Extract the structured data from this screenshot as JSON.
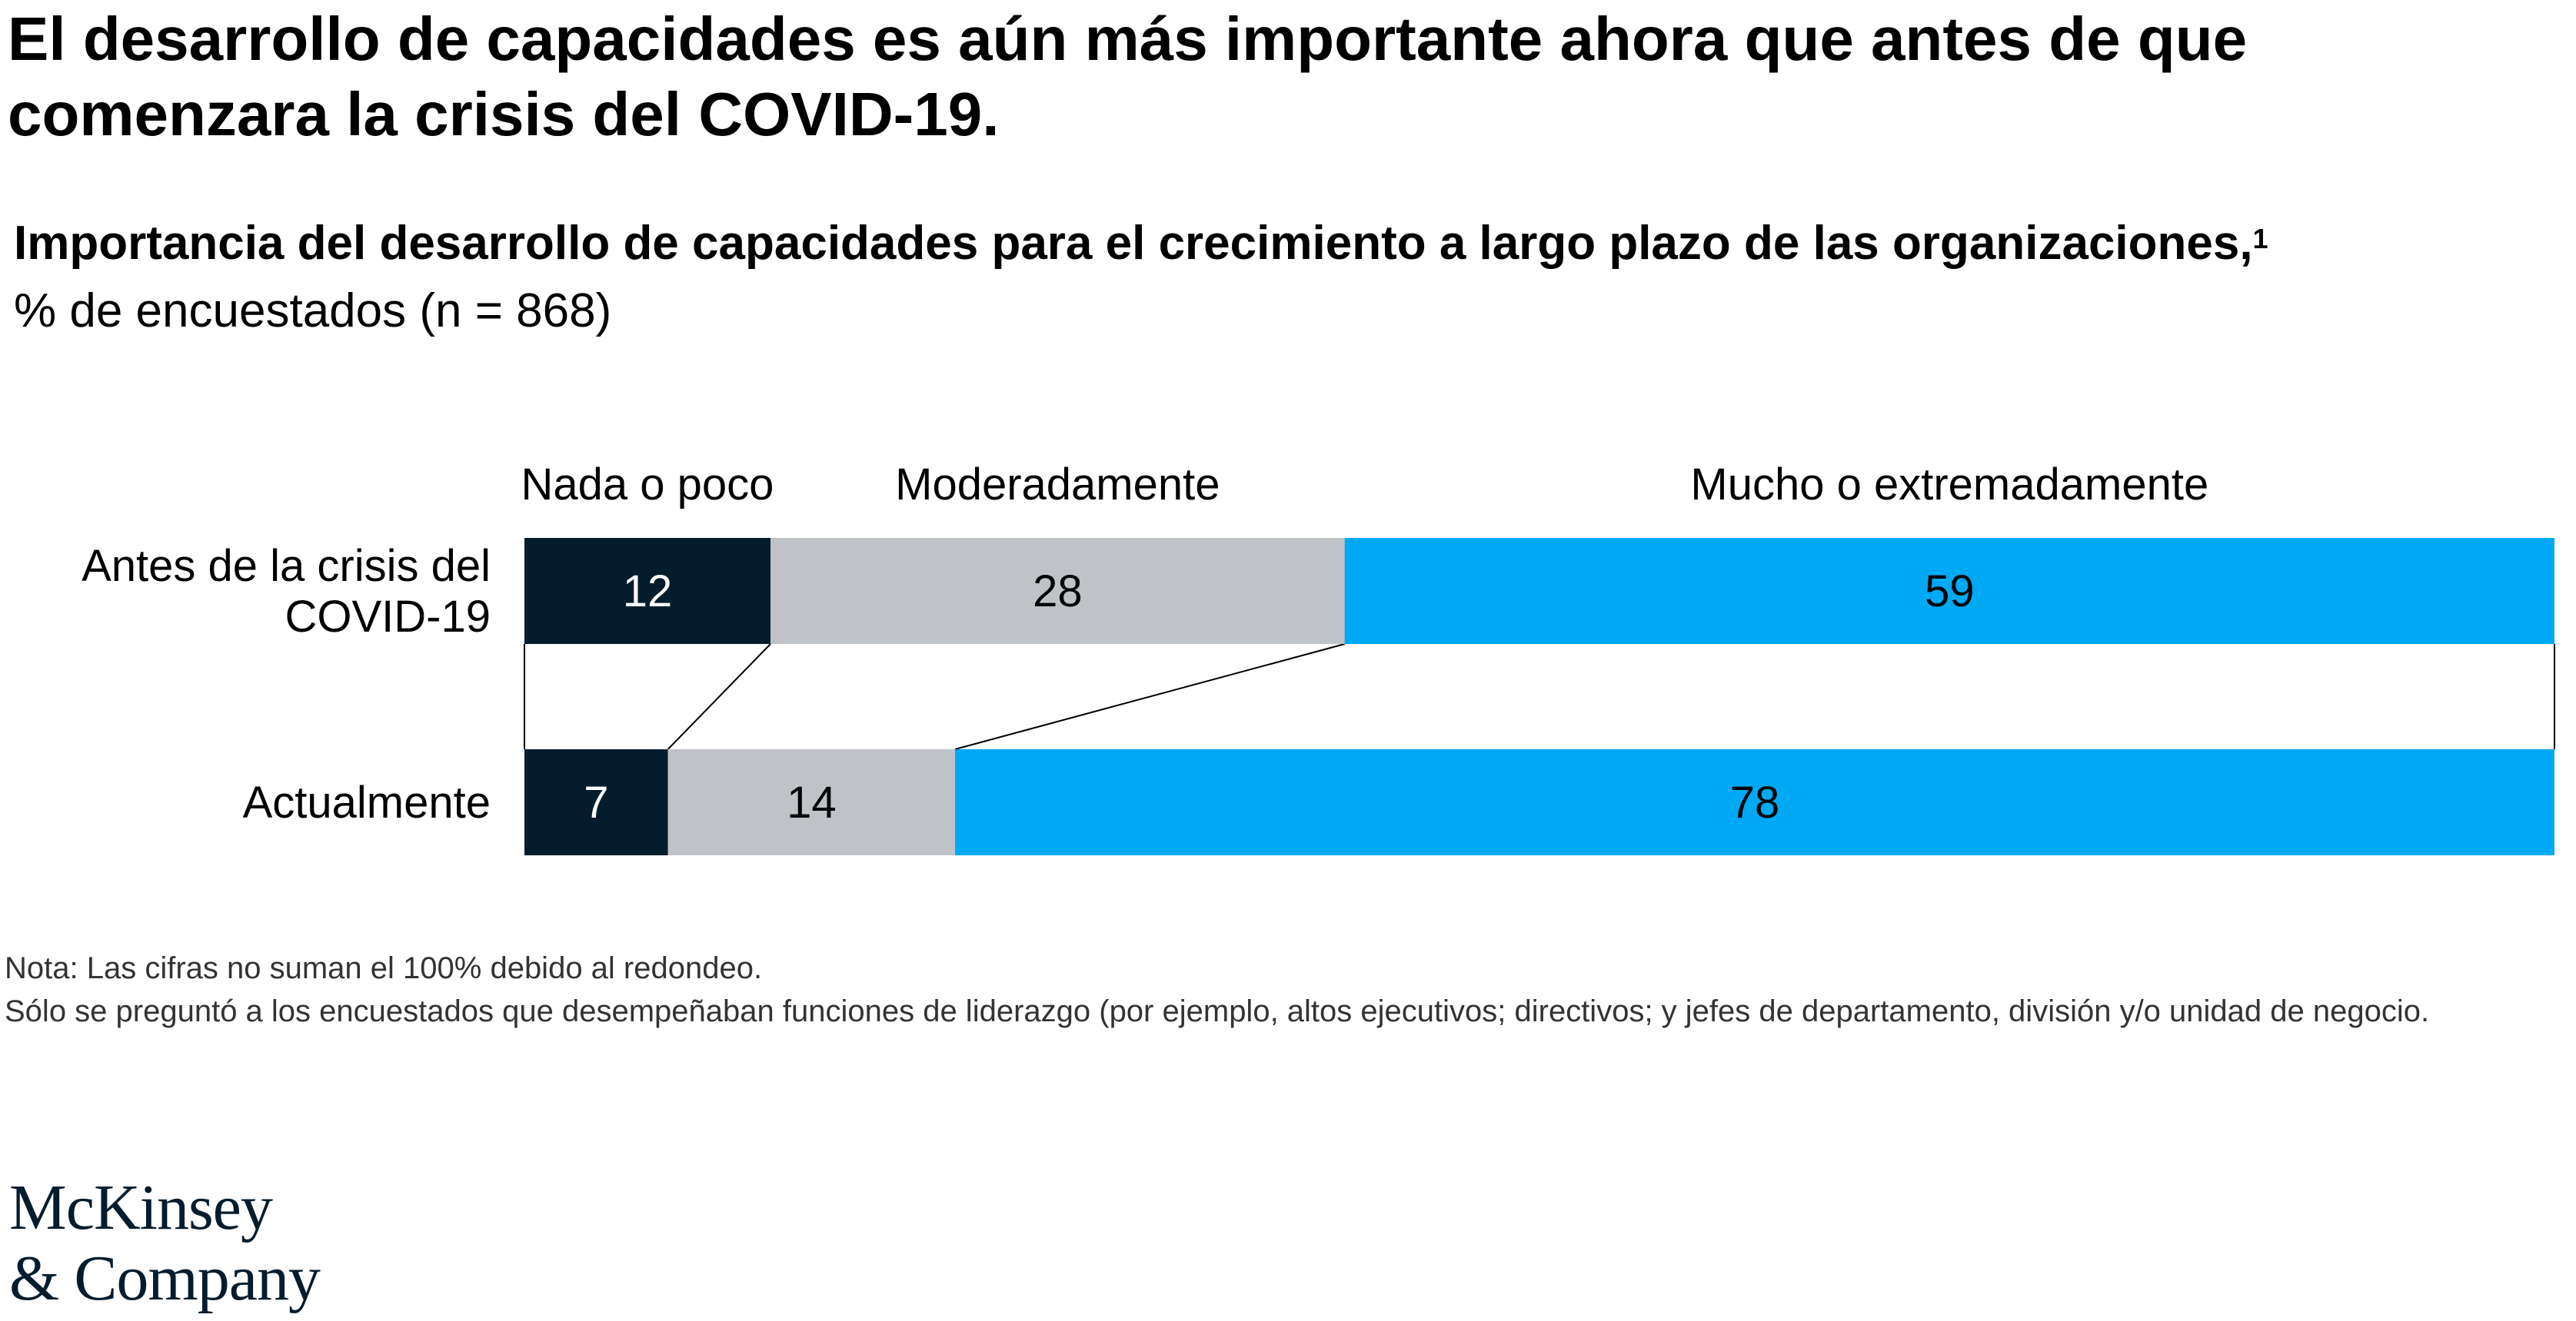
{
  "headline": "El desarrollo de capacidades es aún más importante ahora que antes de que comenzara la crisis del COVID-19.",
  "subtitle": "Importancia del desarrollo de capacidades para el crecimiento a largo plazo de las organizaciones,",
  "subtitle_footnote": "1",
  "unit": "% de encuestados (n = 868)",
  "chart_data": {
    "type": "bar",
    "orientation": "horizontal",
    "stacked": true,
    "categories": [
      "Antes de la crisis del COVID-19",
      "Actualmente"
    ],
    "category_lines": [
      [
        "Antes de la crisis del",
        "COVID-19"
      ],
      [
        "Actualmente"
      ]
    ],
    "series": [
      {
        "name": "Nada o poco",
        "values": [
          12,
          7
        ],
        "color": "#051c2c",
        "label_color": "#ffffff"
      },
      {
        "name": "Moderadamente",
        "values": [
          28,
          14
        ],
        "color": "#bfc3c7",
        "label_color": "#000000"
      },
      {
        "name": "Mucho o extremadamente",
        "values": [
          59,
          78
        ],
        "color": "#00a9f4",
        "label_color": "#000000"
      }
    ],
    "xlim": [
      0,
      99
    ],
    "legend_position": "top",
    "grid": false
  },
  "notes": [
    "Nota: Las cifras no suman el 100% debido al redondeo.",
    "Sólo se preguntó a los encuestados que desempeñaban funciones de liderazgo (por ejemplo, altos ejecutivos; directivos; y jefes de departamento, división y/o unidad de negocio."
  ],
  "logo": {
    "line1": "McKinsey",
    "line2": "& Company"
  }
}
